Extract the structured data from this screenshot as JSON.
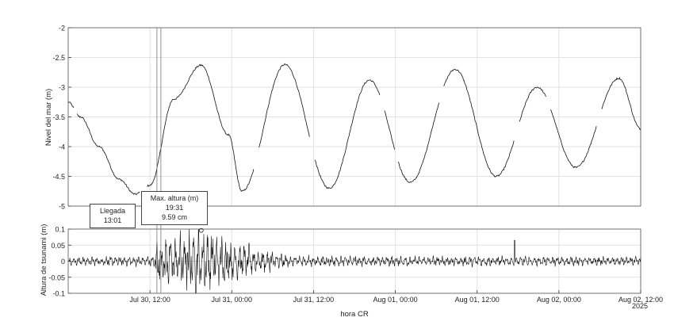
{
  "chart_data": [
    {
      "type": "line",
      "panel": "top",
      "ylabel": "Nivel del mar (m)",
      "ylim": [
        -5,
        -2
      ],
      "yticks": [
        -5,
        -4.5,
        -4,
        -3.5,
        -3,
        -2.5,
        -2
      ],
      "ytick_labels": [
        "-5",
        "-4.5",
        "-4",
        "-3.5",
        "-3",
        "-2.5",
        "-2"
      ],
      "grid": true,
      "x_unit": "hours since Jul 30 00:00 (hora CR)",
      "extrema": [
        {
          "x": 0.0,
          "y": -3.25
        },
        {
          "x": 1.8,
          "y": -3.5
        },
        {
          "x": 4.5,
          "y": -4.0
        },
        {
          "x": 7.5,
          "y": -4.55
        },
        {
          "x": 9.8,
          "y": -4.8
        },
        {
          "x": 12.0,
          "y": -4.65
        },
        {
          "x": 15.5,
          "y": -3.2
        },
        {
          "x": 19.5,
          "y": -2.63
        },
        {
          "x": 23.5,
          "y": -3.8
        },
        {
          "x": 25.5,
          "y": -4.75
        },
        {
          "x": 31.8,
          "y": -2.62
        },
        {
          "x": 38.3,
          "y": -4.7
        },
        {
          "x": 44.2,
          "y": -2.88
        },
        {
          "x": 50.2,
          "y": -4.6
        },
        {
          "x": 56.8,
          "y": -2.7
        },
        {
          "x": 62.8,
          "y": -4.5
        },
        {
          "x": 68.8,
          "y": -3.0
        },
        {
          "x": 74.5,
          "y": -4.35
        },
        {
          "x": 80.8,
          "y": -2.85
        },
        {
          "x": 84.0,
          "y": -3.7
        }
      ],
      "gaps_hours": [
        [
          0.8,
          1.2
        ],
        [
          10.5,
          11.5
        ],
        [
          27.3,
          28.0
        ],
        [
          35.5,
          36.2
        ],
        [
          45.8,
          46.4
        ],
        [
          48.0,
          48.4
        ],
        [
          54.5,
          55.1
        ],
        [
          65.5,
          66.2
        ],
        [
          70.2,
          70.8
        ],
        [
          77.5,
          78.2
        ]
      ]
    },
    {
      "type": "line",
      "panel": "bottom",
      "ylabel": "Altura de tsunami (m)",
      "xlabel": "hora CR",
      "ylim": [
        -0.1,
        0.1
      ],
      "yticks": [
        -0.1,
        -0.05,
        0,
        0.05,
        0.1
      ],
      "ytick_labels": [
        "-0.1",
        "-0.05",
        "0",
        "0.05",
        "0.1"
      ],
      "xlim_hours": [
        0,
        84
      ],
      "xticks_hours": [
        12,
        24,
        36,
        48,
        60,
        72,
        84
      ],
      "xtick_labels": [
        "Jul 30, 12:00",
        "Jul 31, 00:00",
        "Jul 31, 12:00",
        "Aug 01, 00:00",
        "Aug 01, 12:00",
        "Aug 02, 00:00",
        "Aug 02, 12:00"
      ],
      "xtick_year_label": "2025",
      "grid": true,
      "amplitude_envelope": [
        {
          "x": 0,
          "amp": 0.012
        },
        {
          "x": 12.5,
          "amp": 0.014
        },
        {
          "x": 13.0,
          "amp": 0.06
        },
        {
          "x": 15.0,
          "amp": 0.07
        },
        {
          "x": 19.5,
          "amp": 0.1
        },
        {
          "x": 22.0,
          "amp": 0.075
        },
        {
          "x": 25.0,
          "amp": 0.055
        },
        {
          "x": 28.0,
          "amp": 0.035
        },
        {
          "x": 32.0,
          "amp": 0.02
        },
        {
          "x": 36.0,
          "amp": 0.015
        },
        {
          "x": 60.0,
          "amp": 0.014
        },
        {
          "x": 84.0,
          "amp": 0.012
        }
      ],
      "spikes": [
        {
          "x": 65.5,
          "y": 0.065
        }
      ],
      "max_marker": {
        "x": 19.52,
        "y": 0.0959
      }
    }
  ],
  "markers": {
    "arrival_lines_hours": [
      13.02,
      13.6
    ],
    "arrival_label": {
      "title": "Llegada",
      "time": "13:01"
    },
    "max_label": {
      "title": "Max. altura (m)",
      "time": "19:31",
      "value": "9.59 cm"
    }
  }
}
